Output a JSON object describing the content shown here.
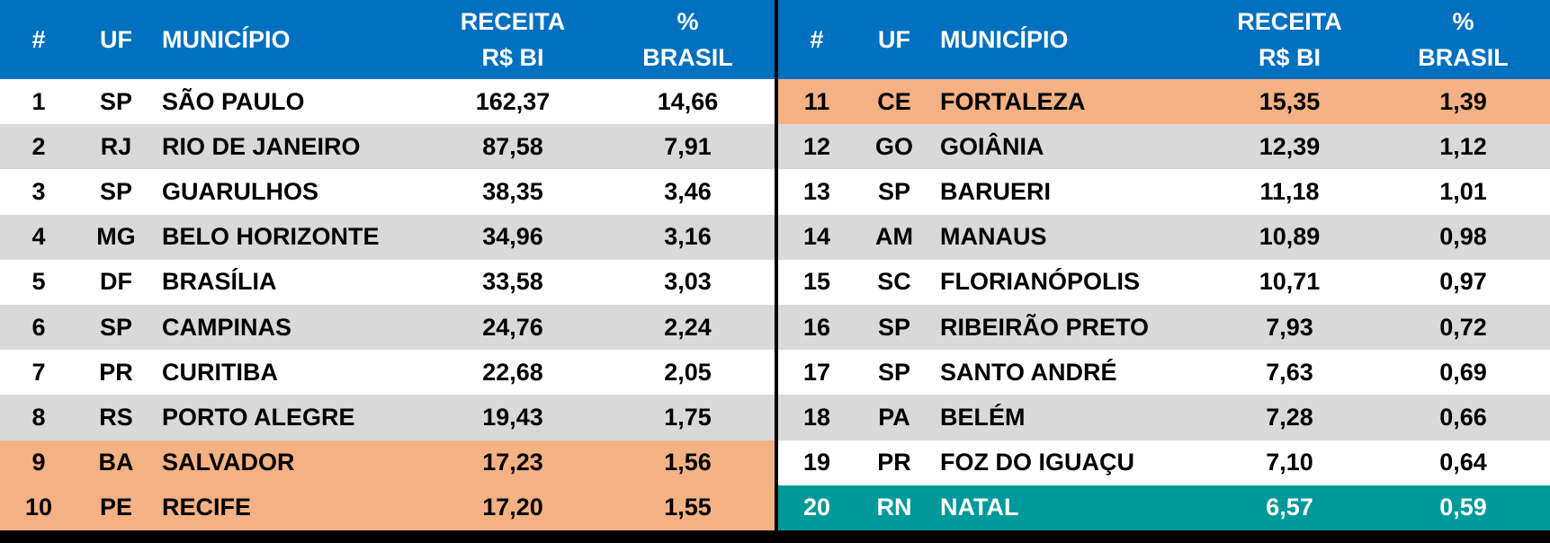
{
  "colors": {
    "header_bg": "#0070c0",
    "row_white": "#ffffff",
    "row_gray": "#d9d9d9",
    "highlight_orange": "#f4b183",
    "highlight_teal": "#009999",
    "separator": "#000000"
  },
  "headers": {
    "num": "#",
    "uf": "UF",
    "municipio": "MUNICÍPIO",
    "receita_l1": "RECEITA",
    "receita_l2": "R$ BI",
    "pct_l1": "%",
    "pct_l2": "BRASIL"
  },
  "chart_data": {
    "type": "table",
    "columns": [
      "#",
      "UF",
      "MUNICÍPIO",
      "RECEITA R$ BI",
      "% BRASIL"
    ],
    "rows": [
      {
        "rank": "1",
        "uf": "SP",
        "municipio": "SÃO PAULO",
        "receita": "162,37",
        "pct": "14,66",
        "highlight": "none"
      },
      {
        "rank": "2",
        "uf": "RJ",
        "municipio": "RIO DE JANEIRO",
        "receita": "87,58",
        "pct": "7,91",
        "highlight": "none"
      },
      {
        "rank": "3",
        "uf": "SP",
        "municipio": "GUARULHOS",
        "receita": "38,35",
        "pct": "3,46",
        "highlight": "none"
      },
      {
        "rank": "4",
        "uf": "MG",
        "municipio": "BELO HORIZONTE",
        "receita": "34,96",
        "pct": "3,16",
        "highlight": "none"
      },
      {
        "rank": "5",
        "uf": "DF",
        "municipio": "BRASÍLIA",
        "receita": "33,58",
        "pct": "3,03",
        "highlight": "none"
      },
      {
        "rank": "6",
        "uf": "SP",
        "municipio": "CAMPINAS",
        "receita": "24,76",
        "pct": "2,24",
        "highlight": "none"
      },
      {
        "rank": "7",
        "uf": "PR",
        "municipio": "CURITIBA",
        "receita": "22,68",
        "pct": "2,05",
        "highlight": "none"
      },
      {
        "rank": "8",
        "uf": "RS",
        "municipio": "PORTO ALEGRE",
        "receita": "19,43",
        "pct": "1,75",
        "highlight": "none"
      },
      {
        "rank": "9",
        "uf": "BA",
        "municipio": "SALVADOR",
        "receita": "17,23",
        "pct": "1,56",
        "highlight": "orange"
      },
      {
        "rank": "10",
        "uf": "PE",
        "municipio": "RECIFE",
        "receita": "17,20",
        "pct": "1,55",
        "highlight": "orange"
      },
      {
        "rank": "11",
        "uf": "CE",
        "municipio": "FORTALEZA",
        "receita": "15,35",
        "pct": "1,39",
        "highlight": "orange"
      },
      {
        "rank": "12",
        "uf": "GO",
        "municipio": "GOIÂNIA",
        "receita": "12,39",
        "pct": "1,12",
        "highlight": "none"
      },
      {
        "rank": "13",
        "uf": "SP",
        "municipio": "BARUERI",
        "receita": "11,18",
        "pct": "1,01",
        "highlight": "none"
      },
      {
        "rank": "14",
        "uf": "AM",
        "municipio": "MANAUS",
        "receita": "10,89",
        "pct": "0,98",
        "highlight": "none"
      },
      {
        "rank": "15",
        "uf": "SC",
        "municipio": "FLORIANÓPOLIS",
        "receita": "10,71",
        "pct": "0,97",
        "highlight": "none"
      },
      {
        "rank": "16",
        "uf": "SP",
        "municipio": "RIBEIRÃO PRETO",
        "receita": "7,93",
        "pct": "0,72",
        "highlight": "none"
      },
      {
        "rank": "17",
        "uf": "SP",
        "municipio": "SANTO ANDRÉ",
        "receita": "7,63",
        "pct": "0,69",
        "highlight": "none"
      },
      {
        "rank": "18",
        "uf": "PA",
        "municipio": "BELÉM",
        "receita": "7,28",
        "pct": "0,66",
        "highlight": "none"
      },
      {
        "rank": "19",
        "uf": "PR",
        "municipio": "FOZ DO IGUAÇU",
        "receita": "7,10",
        "pct": "0,64",
        "highlight": "none"
      },
      {
        "rank": "20",
        "uf": "RN",
        "municipio": "NATAL",
        "receita": "6,57",
        "pct": "0,59",
        "highlight": "teal"
      }
    ]
  }
}
